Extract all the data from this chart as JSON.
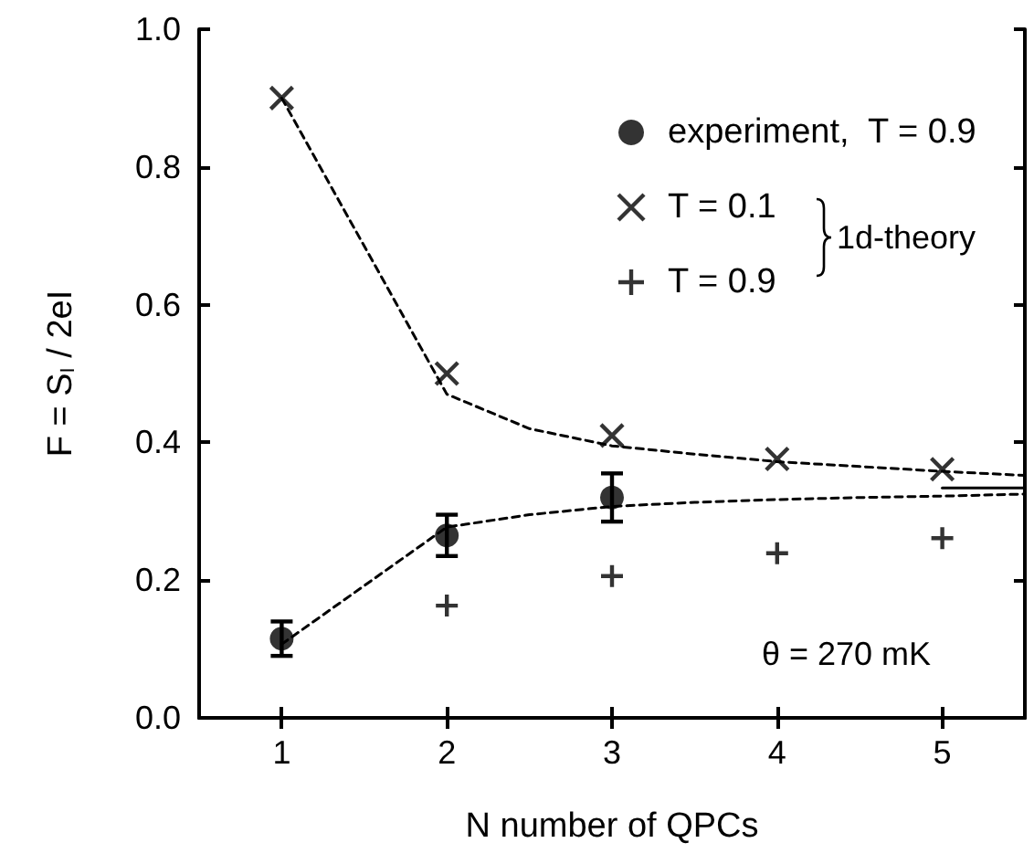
{
  "chart_data": {
    "type": "scatter",
    "xlabel": "N number of QPCs",
    "ylabel": "F = S$_{I}$ / 2eI",
    "xlim": [
      0.5,
      5.5
    ],
    "xticks": [
      1,
      2,
      3,
      4,
      5
    ],
    "ylim": [
      0,
      1
    ],
    "yticks": [
      {
        "value": 0,
        "label": "0.0"
      },
      0.2,
      0.4,
      0.6,
      0.8,
      {
        "value": 1,
        "label": "1.0"
      }
    ],
    "grid": false,
    "legend": "top right",
    "annotations": [
      "1d-theory",
      "θ = 270 mK"
    ],
    "series": [
      {
        "name": "experiment,  T = 0.9",
        "marker": "circle",
        "color": "#000000",
        "x": [
          1,
          2,
          3
        ],
        "values": [
          0.115,
          0.265,
          0.32
        ],
        "errors": [
          0.025,
          0.03,
          0.035
        ]
      },
      {
        "name": "T = 0.1",
        "marker": "cross",
        "color": "#000000",
        "x": [
          1,
          2,
          3,
          4,
          5
        ],
        "values": [
          0.9,
          0.5,
          0.41,
          0.376,
          0.361
        ]
      },
      {
        "name": "T = 0.9",
        "marker": "plus",
        "color": "#000000",
        "x": [
          2,
          3,
          4,
          5
        ],
        "values": [
          0.163,
          0.206,
          0.239,
          0.261
        ]
      },
      {
        "type": "line",
        "line_style": "dashed",
        "color": "#000000",
        "x": [
          1,
          2,
          2.5,
          3,
          3.5,
          4,
          4.5,
          5,
          5.5
        ],
        "values": [
          0.9,
          0.47,
          0.42,
          0.395,
          0.383,
          0.372,
          0.365,
          0.358,
          0.352
        ]
      },
      {
        "type": "line",
        "line_style": "dashed",
        "color": "#000000",
        "x": [
          1,
          2,
          2.5,
          3,
          3.5,
          4,
          4.5,
          5,
          5.5
        ],
        "values": [
          0.107,
          0.277,
          0.295,
          0.307,
          0.313,
          0.317,
          0.32,
          0.322,
          0.325
        ]
      },
      {
        "type": "line",
        "line_style": "solid",
        "color": "#000000",
        "x": [
          5,
          5.5
        ],
        "values": [
          0.334,
          0.334
        ]
      }
    ]
  }
}
